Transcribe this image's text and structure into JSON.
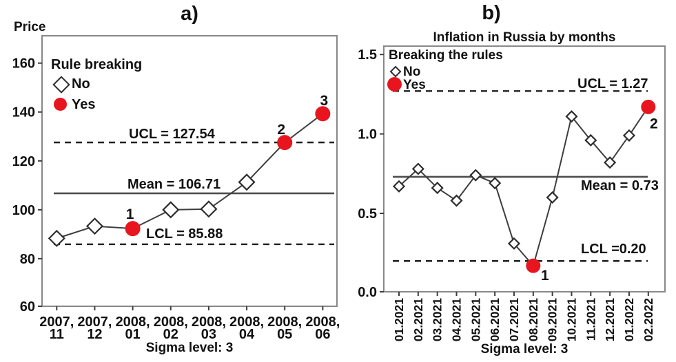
{
  "colors": {
    "breaking_marker": "#e8151f",
    "series_line": "#3d3d3d",
    "limit_line": "#1f1f1f",
    "mean_line": "#4d4d4d",
    "frame": "#888888",
    "text": "#111111"
  },
  "chart_data": [
    {
      "panel": "a)",
      "type": "line",
      "title": "",
      "ylabel": "Price",
      "xlabel": "Sigma level: 3",
      "sigma_label": "Sigma level: 3",
      "legend": {
        "title": "Rule breaking",
        "items": [
          {
            "label": "No",
            "marker": "diamond-outline"
          },
          {
            "label": "Yes",
            "marker": "red-circle"
          }
        ]
      },
      "ucl": 127.54,
      "mean": 106.71,
      "lcl": 85.88,
      "ucl_label": "UCL = 127.54",
      "mean_label": "Mean = 106.71",
      "lcl_label": "LCL = 85.88",
      "ylim": [
        60,
        170
      ],
      "yticks": [
        {
          "v": 60,
          "t": "60"
        },
        {
          "v": 80,
          "t": "80"
        },
        {
          "v": 100,
          "t": "100"
        },
        {
          "v": 120,
          "t": "120"
        },
        {
          "v": 140,
          "t": "140"
        },
        {
          "v": 160,
          "t": "160"
        }
      ],
      "categories": [
        "2007, 11",
        "2007, 12",
        "2008, 01",
        "2008, 02",
        "2008, 03",
        "2008, 04",
        "2008, 05",
        "2008, 06"
      ],
      "values": [
        88.3,
        93.3,
        92.3,
        100.0,
        100.3,
        111.3,
        127.5,
        139.3
      ],
      "breaking": [
        false,
        false,
        true,
        false,
        false,
        false,
        true,
        true
      ],
      "point_labels": [
        "",
        "",
        "1",
        "",
        "",
        "",
        "2",
        "3"
      ],
      "grid": false,
      "legend_position": "top-left-inside"
    },
    {
      "panel": "b)",
      "type": "line",
      "title": "Inflation in Russia by months",
      "ylabel": "",
      "xlabel": "Sigma level: 3",
      "sigma_label": "Sigma level: 3",
      "legend": {
        "title": "Breaking the rules",
        "items": [
          {
            "label": "No",
            "marker": "diamond-outline"
          },
          {
            "label": "Yes",
            "marker": "red-circle"
          }
        ]
      },
      "ucl": 1.27,
      "mean": 0.73,
      "lcl": 0.2,
      "ucl_label": "UCL = 1.27",
      "mean_label": "Mean = 0.73",
      "lcl_label": "LCL =0.20",
      "ylim": [
        0,
        1.5
      ],
      "yticks": [
        {
          "v": 0,
          "t": "0.0"
        },
        {
          "v": 0.5,
          "t": "0.5"
        },
        {
          "v": 1.0,
          "t": "1.0"
        },
        {
          "v": 1.5,
          "t": "1.5"
        }
      ],
      "categories": [
        "01.2021",
        "02.2021",
        "03.2021",
        "04.2021",
        "05.2021",
        "06.2021",
        "07.2021",
        "08.2021",
        "09.2021",
        "10.2021",
        "11.2021",
        "12.2021",
        "01.2022",
        "02.2022"
      ],
      "values": [
        0.67,
        0.78,
        0.66,
        0.58,
        0.74,
        0.69,
        0.31,
        0.17,
        0.6,
        1.11,
        0.96,
        0.82,
        0.99,
        1.17
      ],
      "breaking": [
        false,
        false,
        false,
        false,
        false,
        false,
        false,
        true,
        false,
        false,
        false,
        false,
        false,
        true
      ],
      "point_labels": [
        "",
        "",
        "",
        "",
        "",
        "",
        "",
        "1",
        "",
        "",
        "",
        "",
        "",
        "2"
      ],
      "grid": false,
      "legend_position": "top-left-inside"
    }
  ]
}
